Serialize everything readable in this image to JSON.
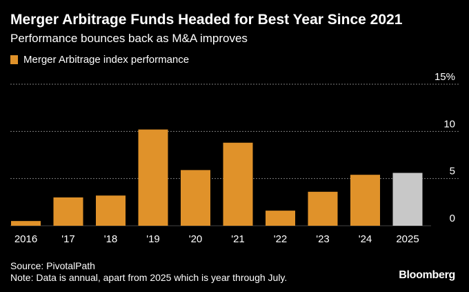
{
  "header": {
    "title": "Merger Arbitrage Funds Headed for Best Year Since 2021",
    "subtitle": "Performance bounces back as M&A improves"
  },
  "legend": {
    "label": "Merger Arbitrage index performance"
  },
  "colors": {
    "bar": "#e0922a",
    "highlight_bar": "#c8c8c8",
    "background": "#000000",
    "grid": "#808080",
    "text": "#ffffff"
  },
  "chart_data": {
    "type": "bar",
    "categories": [
      "2016",
      "'17",
      "'18",
      "'19",
      "'20",
      "'21",
      "'22",
      "'23",
      "'24",
      "2025"
    ],
    "values": [
      0.5,
      3.0,
      3.2,
      10.2,
      5.9,
      8.8,
      1.6,
      3.6,
      5.4,
      5.6
    ],
    "highlight": [
      false,
      false,
      false,
      false,
      false,
      false,
      false,
      false,
      false,
      true
    ],
    "ylim": [
      0,
      15
    ],
    "yticks": [
      {
        "value": 0,
        "label": "0"
      },
      {
        "value": 5,
        "label": "5"
      },
      {
        "value": 10,
        "label": "10"
      },
      {
        "value": 15,
        "label": "15%"
      }
    ],
    "grid": true,
    "legend_position": "top-left"
  },
  "footer": {
    "source": "Source: PivotalPath",
    "note": "Note: Data is annual, apart from 2025 which is year through July."
  },
  "brand": "Bloomberg"
}
